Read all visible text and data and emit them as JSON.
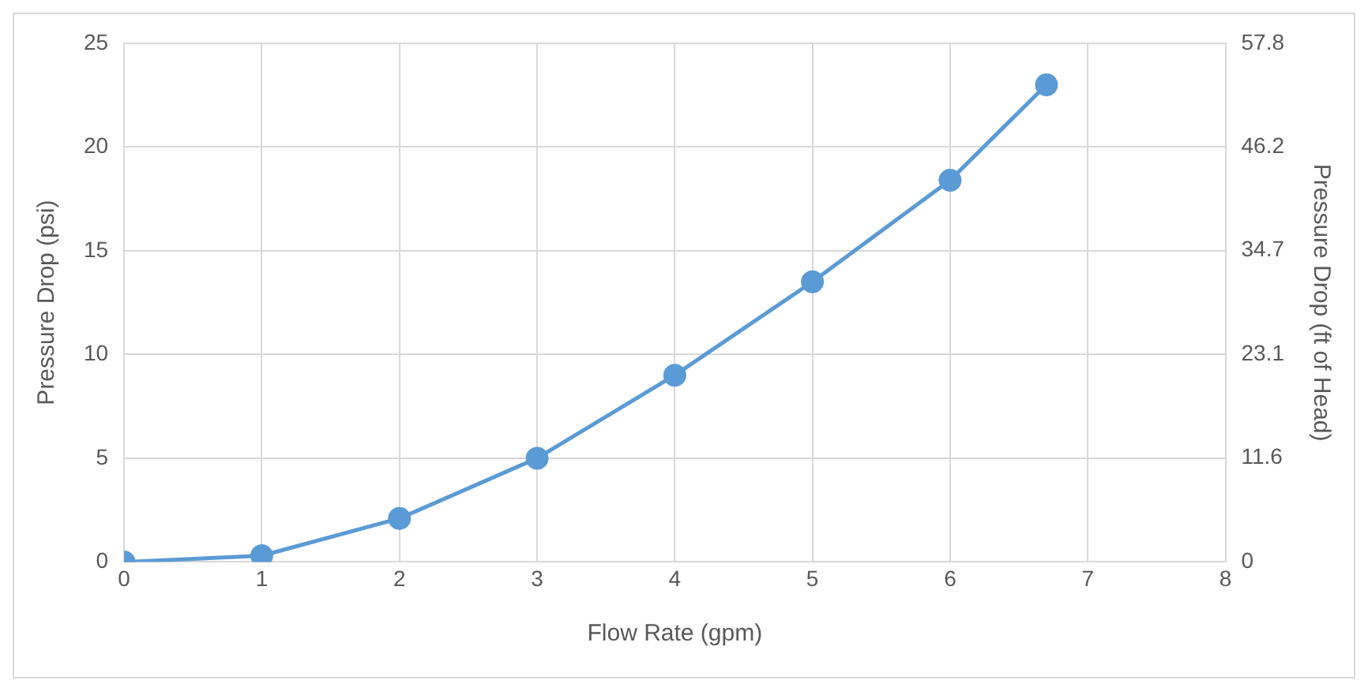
{
  "chart_data": {
    "type": "line",
    "xlabel": "Flow Rate (gpm)",
    "ylabel": "Pressure Drop (psi)",
    "y2label": "Pressure Drop (ft of Head)",
    "x": [
      0,
      1,
      2,
      3,
      4,
      5,
      6,
      6.7
    ],
    "series": [
      {
        "color": "#5b9bd5",
        "values": [
          0,
          0.3,
          2.1,
          5,
          9,
          13.5,
          18.4,
          23
        ]
      }
    ],
    "xlim": [
      0,
      8
    ],
    "xticks": [
      0,
      1,
      2,
      3,
      4,
      5,
      6,
      7,
      8
    ],
    "ylim": [
      0,
      25
    ],
    "yticks": [
      0,
      5,
      10,
      15,
      20,
      25
    ],
    "y2lim": [
      0,
      57.8
    ],
    "y2ticks": [
      0,
      11.6,
      23.1,
      34.7,
      46.2,
      57.8
    ],
    "grid": true,
    "legend": false,
    "marker": "circle",
    "line_style": "solid"
  }
}
